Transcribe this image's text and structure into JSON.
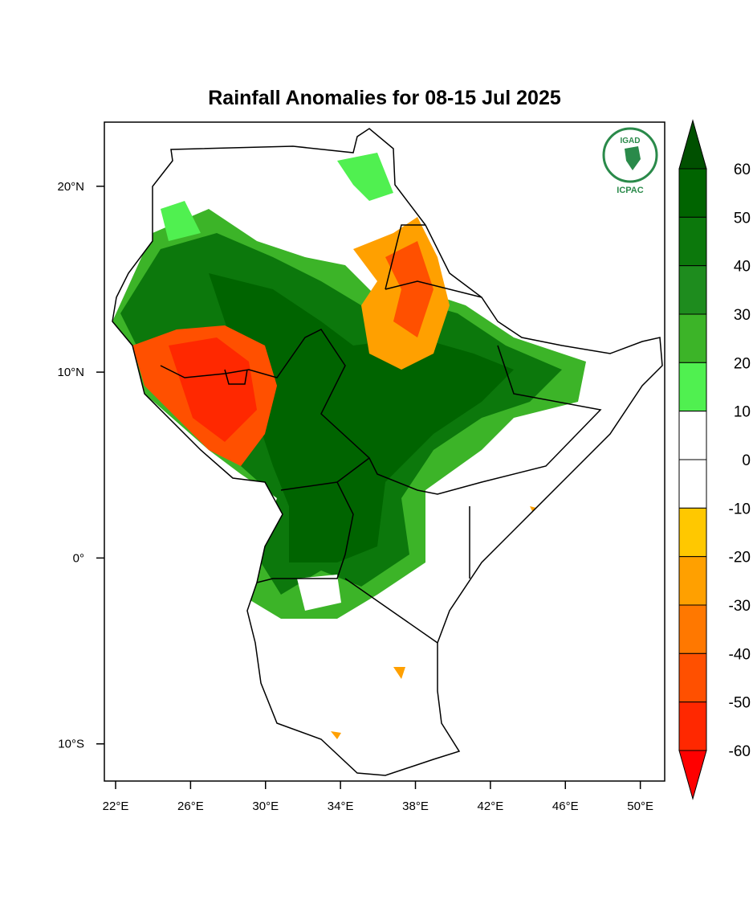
{
  "title": "Rainfall Anomalies for 08-15 Jul 2025",
  "map": {
    "lonlim": [
      21.4,
      51.3
    ],
    "latlim": [
      -12,
      23.45
    ],
    "lon_ticks": [
      {
        "value": 22,
        "label": "22°E"
      },
      {
        "value": 26,
        "label": "26°E"
      },
      {
        "value": 30,
        "label": "30°E"
      },
      {
        "value": 34,
        "label": "34°E"
      },
      {
        "value": 38,
        "label": "38°E"
      },
      {
        "value": 42,
        "label": "42°E"
      },
      {
        "value": 46,
        "label": "46°E"
      },
      {
        "value": 50,
        "label": "50°E"
      }
    ],
    "lat_ticks": [
      {
        "value": 20,
        "label": "20°N"
      },
      {
        "value": 10,
        "label": "10°N"
      },
      {
        "value": 0,
        "label": "0°"
      },
      {
        "value": -10,
        "label": "10°S"
      }
    ]
  },
  "colorbar": {
    "levels": [
      60,
      50,
      40,
      30,
      20,
      10,
      0,
      -10,
      -20,
      -30,
      -40,
      -50,
      -60
    ],
    "colors": [
      "#005000",
      "#006400",
      "#0c780c",
      "#1e8c1e",
      "#3cb428",
      "#50f050",
      "#ffffff",
      "#ffffff",
      "#ffc800",
      "#ffa000",
      "#ff7800",
      "#ff5000",
      "#ff2800",
      "#ff0000"
    ]
  },
  "logo": {
    "name": "IGAD",
    "org": "ICPAC"
  }
}
